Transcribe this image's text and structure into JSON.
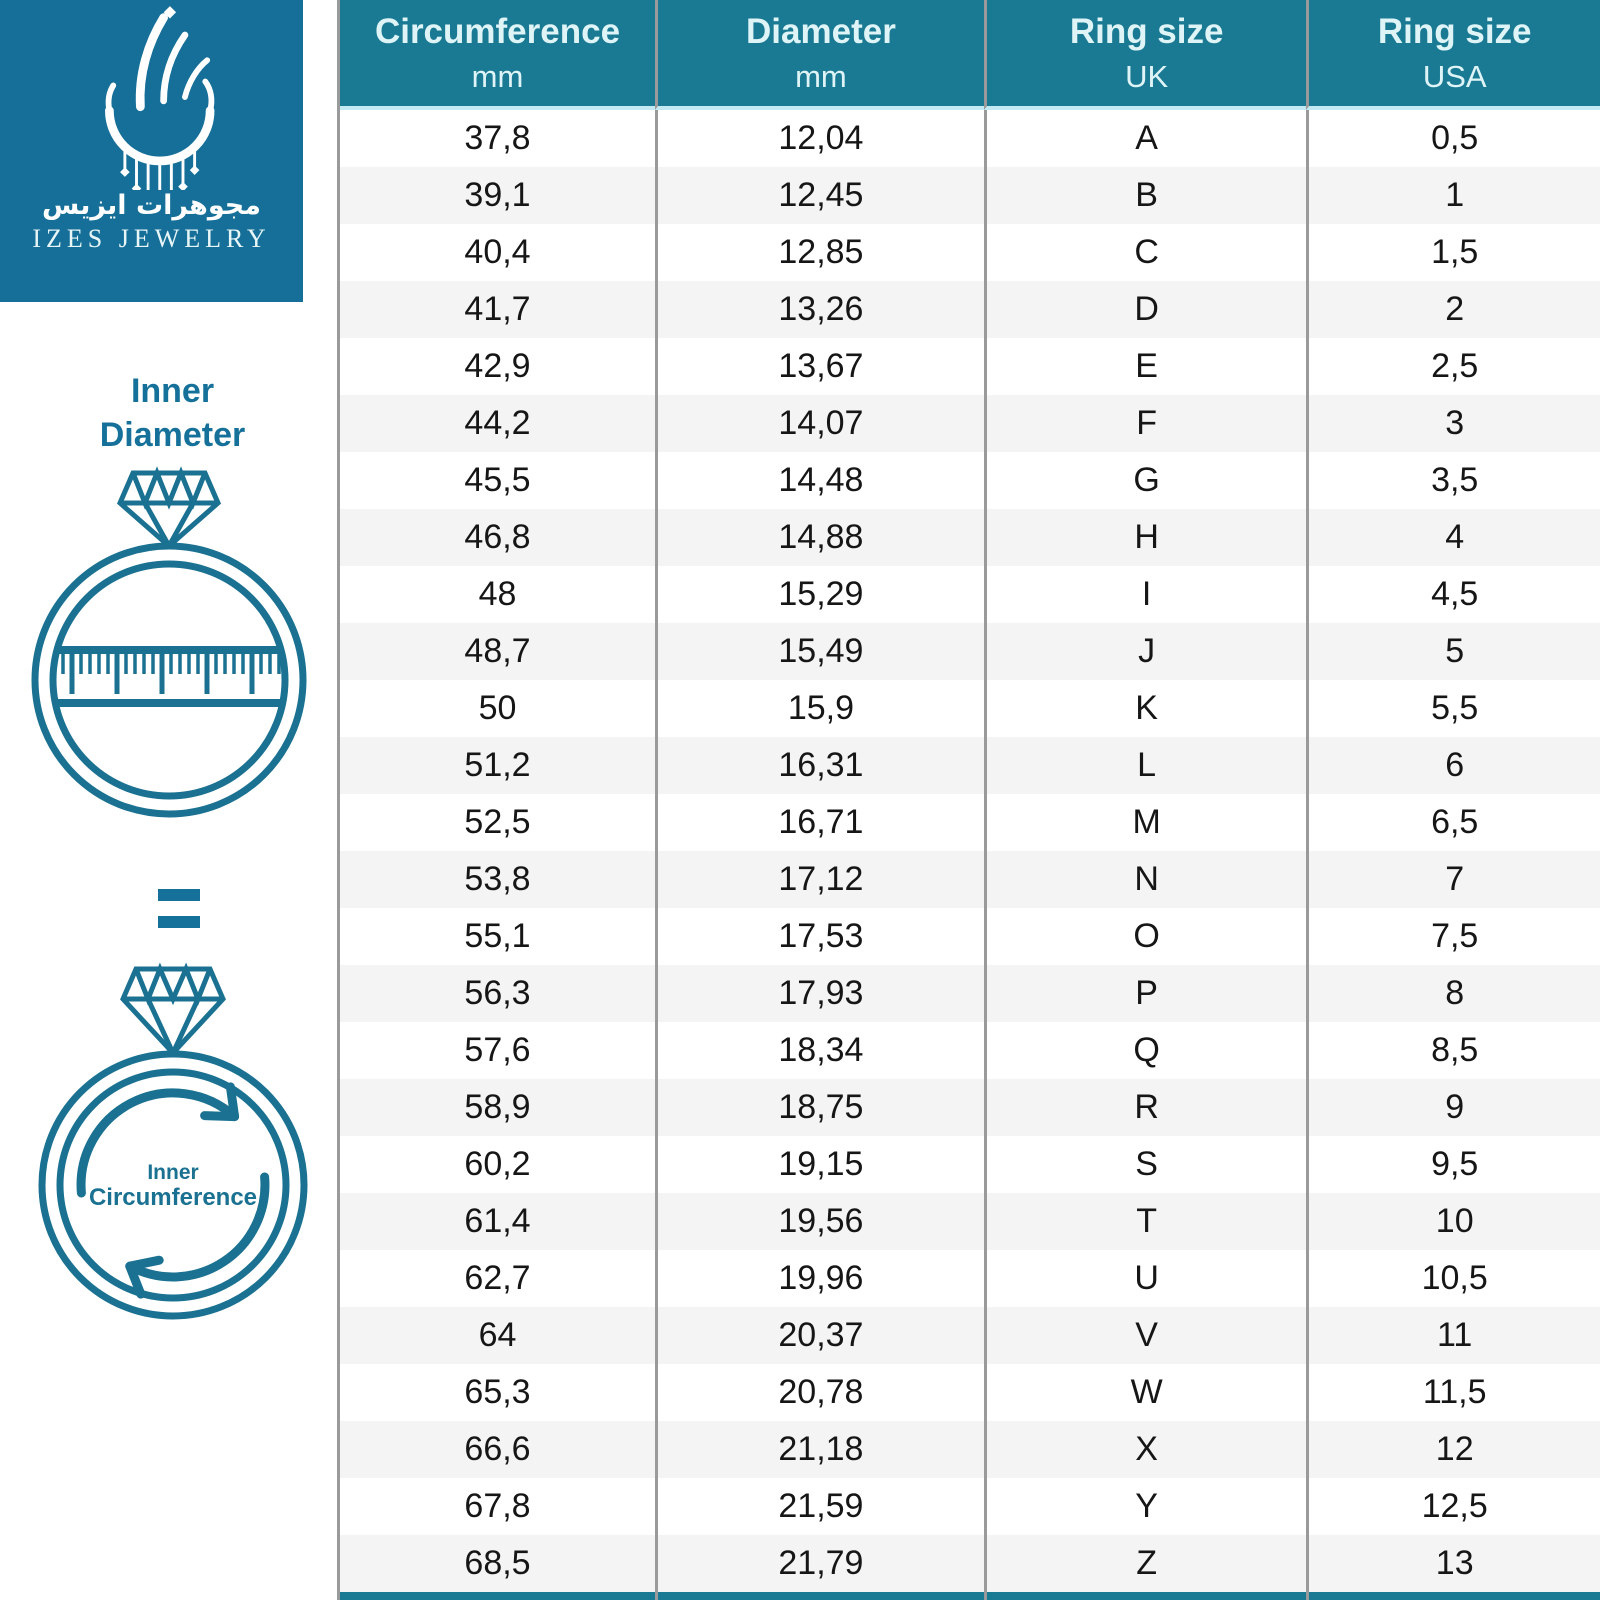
{
  "brand": {
    "arabic_name": "مجوهرات ايزيس",
    "latin_name": "IZES JEWELRY",
    "logo_teal": "#156F99",
    "header_teal": "#1A7A94",
    "illustration_teal": "#1A7191",
    "alt_row_gray": "#F4F4F4",
    "divider_gray": "#9A9A9A"
  },
  "sidebar": {
    "inner_diameter_line1": "Inner",
    "inner_diameter_line2": "Diameter",
    "equals_sign": "=",
    "inner_circumference_line1": "Inner",
    "inner_circumference_line2": "Circumference"
  },
  "table": {
    "headers": [
      {
        "label": "Circumference",
        "sub": "mm"
      },
      {
        "label": "Diameter",
        "sub": "mm"
      },
      {
        "label": "Ring size",
        "sub": "UK"
      },
      {
        "label": "Ring size",
        "sub": "USA"
      }
    ],
    "rows": [
      [
        "37,8",
        "12,04",
        "A",
        "0,5"
      ],
      [
        "39,1",
        "12,45",
        "B",
        "1"
      ],
      [
        "40,4",
        "12,85",
        "C",
        "1,5"
      ],
      [
        "41,7",
        "13,26",
        "D",
        "2"
      ],
      [
        "42,9",
        "13,67",
        "E",
        "2,5"
      ],
      [
        "44,2",
        "14,07",
        "F",
        "3"
      ],
      [
        "45,5",
        "14,48",
        "G",
        "3,5"
      ],
      [
        "46,8",
        "14,88",
        "H",
        "4"
      ],
      [
        "48",
        "15,29",
        "I",
        "4,5"
      ],
      [
        "48,7",
        "15,49",
        "J",
        "5"
      ],
      [
        "50",
        "15,9",
        "K",
        "5,5"
      ],
      [
        "51,2",
        "16,31",
        "L",
        "6"
      ],
      [
        "52,5",
        "16,71",
        "M",
        "6,5"
      ],
      [
        "53,8",
        "17,12",
        "N",
        "7"
      ],
      [
        "55,1",
        "17,53",
        "O",
        "7,5"
      ],
      [
        "56,3",
        "17,93",
        "P",
        "8"
      ],
      [
        "57,6",
        "18,34",
        "Q",
        "8,5"
      ],
      [
        "58,9",
        "18,75",
        "R",
        "9"
      ],
      [
        "60,2",
        "19,15",
        "S",
        "9,5"
      ],
      [
        "61,4",
        "19,56",
        "T",
        "10"
      ],
      [
        "62,7",
        "19,96",
        "U",
        "10,5"
      ],
      [
        "64",
        "20,37",
        "V",
        "11"
      ],
      [
        "65,3",
        "20,78",
        "W",
        "11,5"
      ],
      [
        "66,6",
        "21,18",
        "X",
        "12"
      ],
      [
        "67,8",
        "21,59",
        "Y",
        "12,5"
      ],
      [
        "68,5",
        "21,79",
        "Z",
        "13"
      ]
    ]
  },
  "chart_data": {
    "type": "table",
    "title": "Ring size conversion chart",
    "columns": [
      "Circumference mm",
      "Diameter mm",
      "Ring size UK",
      "Ring size USA"
    ],
    "rows": [
      [
        "37,8",
        "12,04",
        "A",
        "0,5"
      ],
      [
        "39,1",
        "12,45",
        "B",
        "1"
      ],
      [
        "40,4",
        "12,85",
        "C",
        "1,5"
      ],
      [
        "41,7",
        "13,26",
        "D",
        "2"
      ],
      [
        "42,9",
        "13,67",
        "E",
        "2,5"
      ],
      [
        "44,2",
        "14,07",
        "F",
        "3"
      ],
      [
        "45,5",
        "14,48",
        "G",
        "3,5"
      ],
      [
        "46,8",
        "14,88",
        "H",
        "4"
      ],
      [
        "48",
        "15,29",
        "I",
        "4,5"
      ],
      [
        "48,7",
        "15,49",
        "J",
        "5"
      ],
      [
        "50",
        "15,9",
        "K",
        "5,5"
      ],
      [
        "51,2",
        "16,31",
        "L",
        "6"
      ],
      [
        "52,5",
        "16,71",
        "M",
        "6,5"
      ],
      [
        "53,8",
        "17,12",
        "N",
        "7"
      ],
      [
        "55,1",
        "17,53",
        "O",
        "7,5"
      ],
      [
        "56,3",
        "17,93",
        "P",
        "8"
      ],
      [
        "57,6",
        "18,34",
        "Q",
        "8,5"
      ],
      [
        "58,9",
        "18,75",
        "R",
        "9"
      ],
      [
        "60,2",
        "19,15",
        "S",
        "9,5"
      ],
      [
        "61,4",
        "19,56",
        "T",
        "10"
      ],
      [
        "62,7",
        "19,96",
        "U",
        "10,5"
      ],
      [
        "64",
        "20,37",
        "V",
        "11"
      ],
      [
        "65,3",
        "20,78",
        "W",
        "11,5"
      ],
      [
        "66,6",
        "21,18",
        "X",
        "12"
      ],
      [
        "67,8",
        "21,59",
        "Y",
        "12,5"
      ],
      [
        "68,5",
        "21,79",
        "Z",
        "13"
      ]
    ]
  }
}
